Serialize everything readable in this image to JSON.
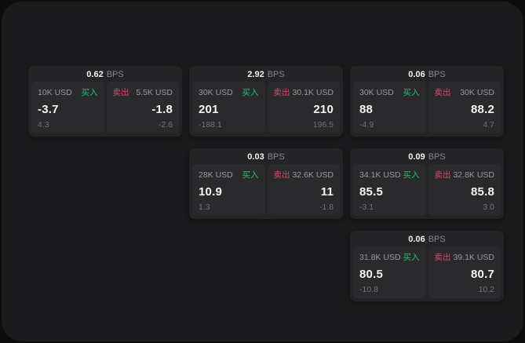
{
  "labels": {
    "bps_unit": "BPS",
    "buy": "买入",
    "sell": "卖出"
  },
  "colors": {
    "outer_background": "#0c0c0d",
    "surface": "#1b1b1d",
    "card": "#242427",
    "panel": "#2a2a2d",
    "buy_accent": "#2ebd6b",
    "sell_accent": "#d8486a",
    "value_text": "#f4f4f5",
    "muted_text": "#99999e",
    "sub_text": "#717175"
  },
  "cards": [
    {
      "bps": "0.62",
      "buy": {
        "size": "10K USD",
        "value": "-3.7",
        "sub": "4.3"
      },
      "sell": {
        "size": "5.5K USD",
        "value": "-1.8",
        "sub": "-2.6"
      }
    },
    {
      "bps": "2.92",
      "buy": {
        "size": "30K USD",
        "value": "201",
        "sub": "-188.1"
      },
      "sell": {
        "size": "30.1K USD",
        "value": "210",
        "sub": "196.5"
      }
    },
    {
      "bps": "0.06",
      "buy": {
        "size": "30K USD",
        "value": "88",
        "sub": "-4.9"
      },
      "sell": {
        "size": "30K USD",
        "value": "88.2",
        "sub": "4.7"
      }
    },
    {
      "bps": "0.03",
      "buy": {
        "size": "28K USD",
        "value": "10.9",
        "sub": "1.3"
      },
      "sell": {
        "size": "32.6K USD",
        "value": "11",
        "sub": "-1.8"
      }
    },
    {
      "bps": "0.09",
      "buy": {
        "size": "34.1K USD",
        "value": "85.5",
        "sub": "-3.1"
      },
      "sell": {
        "size": "32.8K USD",
        "value": "85.8",
        "sub": "3.0"
      }
    },
    {
      "bps": "0.06",
      "buy": {
        "size": "31.8K USD",
        "value": "80.5",
        "sub": "-10.8"
      },
      "sell": {
        "size": "39.1K USD",
        "value": "80.7",
        "sub": "10.2"
      }
    }
  ]
}
